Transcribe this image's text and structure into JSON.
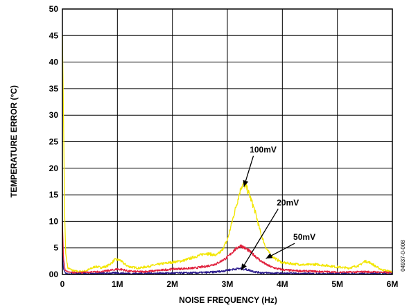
{
  "chart_data": {
    "type": "line",
    "title": "",
    "xlabel": "NOISE FREQUENCY (Hz)",
    "ylabel": "TEMPERATURE ERROR (°C)",
    "xlim": [
      0,
      6000000
    ],
    "ylim": [
      0,
      50
    ],
    "x_ticks": [
      0,
      1000000,
      2000000,
      3000000,
      4000000,
      5000000,
      6000000
    ],
    "x_tick_labels": [
      "0",
      "1M",
      "2M",
      "3M",
      "4M",
      "5M",
      "6M"
    ],
    "y_ticks": [
      0,
      5,
      10,
      15,
      20,
      25,
      30,
      35,
      40,
      45,
      50
    ],
    "y_tick_labels": [
      "00",
      "5",
      "10",
      "15",
      "20",
      "25",
      "30",
      "35",
      "40",
      "45",
      "50"
    ],
    "grid": true,
    "figure_id": "04937-0-008",
    "series": [
      {
        "name": "100mV",
        "color": "#f2e600",
        "x": [
          0,
          20000,
          40000,
          60000,
          100000,
          200000,
          300000,
          400000,
          500000,
          600000,
          700000,
          800000,
          900000,
          950000,
          1050000,
          1100000,
          1200000,
          1300000,
          1400000,
          1600000,
          1800000,
          2000000,
          2200000,
          2400000,
          2500000,
          2600000,
          2700000,
          2800000,
          2900000,
          3000000,
          3100000,
          3200000,
          3250000,
          3300000,
          3350000,
          3400000,
          3500000,
          3600000,
          3700000,
          3800000,
          3900000,
          4000000,
          4200000,
          4400000,
          4600000,
          4800000,
          5000000,
          5200000,
          5400000,
          5500000,
          5600000,
          5700000,
          5800000,
          6000000
        ],
        "y": [
          45,
          30,
          12,
          4,
          1.2,
          0.7,
          0.5,
          0.6,
          1.0,
          1.5,
          1.3,
          1.5,
          2.2,
          2.8,
          2.7,
          2.2,
          1.5,
          1.3,
          1.2,
          1.6,
          2.0,
          2.3,
          2.6,
          3.3,
          3.6,
          4.0,
          3.8,
          3.6,
          4.5,
          6.5,
          10.5,
          14.5,
          16.5,
          17.0,
          16.3,
          15.0,
          12.0,
          8.0,
          5.0,
          3.5,
          2.8,
          2.2,
          2.0,
          1.8,
          1.9,
          1.7,
          1.4,
          1.2,
          1.7,
          2.5,
          2.2,
          1.5,
          0.9,
          0.5
        ]
      },
      {
        "name": "50mV",
        "color": "#e0203c",
        "x": [
          0,
          20000,
          50000,
          100000,
          300000,
          500000,
          700000,
          900000,
          1000000,
          1100000,
          1200000,
          1400000,
          1600000,
          1800000,
          2000000,
          2200000,
          2400000,
          2600000,
          2800000,
          3000000,
          3100000,
          3200000,
          3250000,
          3300000,
          3400000,
          3500000,
          3600000,
          3700000,
          3800000,
          3900000,
          4000000,
          4200000,
          4500000,
          4800000,
          5000000,
          5200000,
          5500000,
          5800000,
          6000000
        ],
        "y": [
          10,
          3,
          0.8,
          0.4,
          0.3,
          0.4,
          0.5,
          0.8,
          1.0,
          0.9,
          0.6,
          0.5,
          0.6,
          0.8,
          1.0,
          1.1,
          1.2,
          1.5,
          2.0,
          3.2,
          4.3,
          5.2,
          5.4,
          5.1,
          4.4,
          3.5,
          2.6,
          1.9,
          1.4,
          1.1,
          0.9,
          0.7,
          0.6,
          0.5,
          0.4,
          0.4,
          0.5,
          0.4,
          0.3
        ]
      },
      {
        "name": "20mV",
        "color": "#2a1a8c",
        "x": [
          0,
          20000,
          60000,
          200000,
          500000,
          800000,
          1000000,
          1100000,
          1300000,
          1600000,
          2000000,
          2400000,
          2700000,
          2900000,
          3000000,
          3100000,
          3200000,
          3250000,
          3300000,
          3400000,
          3500000,
          3600000,
          3800000,
          4000000,
          4300000,
          4700000,
          5000000,
          5500000,
          6000000
        ],
        "y": [
          4,
          1.0,
          0.2,
          0.1,
          0.1,
          0.2,
          0.3,
          0.2,
          0.15,
          0.2,
          0.25,
          0.3,
          0.4,
          0.6,
          0.8,
          0.95,
          1.1,
          1.1,
          1.0,
          0.8,
          0.5,
          0.35,
          0.25,
          0.2,
          0.15,
          0.12,
          0.1,
          0.1,
          0.1
        ]
      }
    ],
    "annotations": [
      {
        "text": "100mV",
        "label_at": [
          3650000,
          23
        ],
        "arrow_to": [
          3300000,
          16.5
        ]
      },
      {
        "text": "20mV",
        "label_at": [
          4100000,
          13
        ],
        "arrow_to": [
          3250000,
          0.8
        ]
      },
      {
        "text": "50mV",
        "label_at": [
          4400000,
          6.5
        ],
        "arrow_to": [
          3700000,
          3.0
        ]
      }
    ]
  }
}
